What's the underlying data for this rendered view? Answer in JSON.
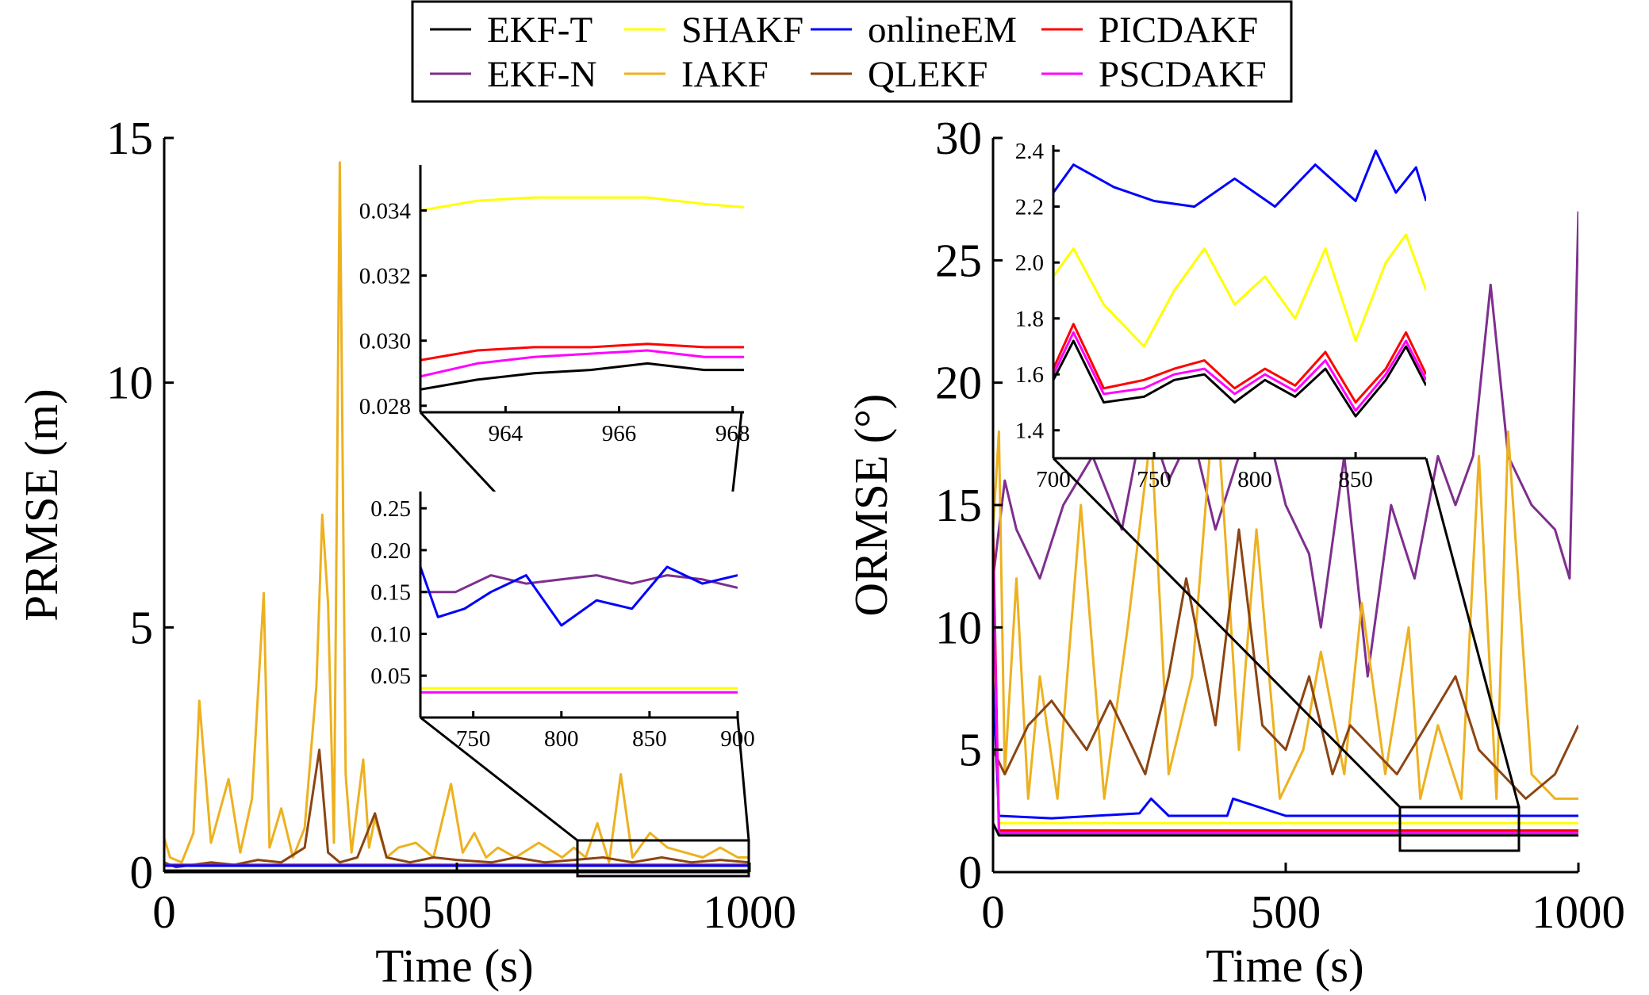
{
  "legend": {
    "items": [
      {
        "label": "EKF-T",
        "color": "#000000"
      },
      {
        "label": "SHAKF",
        "color": "#FFFF00"
      },
      {
        "label": "onlineEM",
        "color": "#0000FF"
      },
      {
        "label": "PICDAKF",
        "color": "#FF0000"
      },
      {
        "label": "EKF-N",
        "color": "#7E2F8E"
      },
      {
        "label": "IAKF",
        "color": "#EDB120"
      },
      {
        "label": "QLEKF",
        "color": "#8B4513"
      },
      {
        "label": "PSCDAKF",
        "color": "#FF00FF"
      }
    ]
  },
  "chart_data": [
    {
      "type": "line",
      "panel": "left-main",
      "xlabel": "Time (s)",
      "ylabel": "PRMSE (m)",
      "xlim": [
        0,
        1000
      ],
      "ylim": [
        0,
        15
      ],
      "xticks": [
        "0",
        "500",
        "1000"
      ],
      "yticks": [
        "0",
        "5",
        "10",
        "15"
      ],
      "series": [
        {
          "name": "IAKF",
          "x": [
            0,
            10,
            30,
            50,
            60,
            80,
            110,
            130,
            150,
            170,
            180,
            200,
            220,
            240,
            260,
            270,
            280,
            290,
            300,
            310,
            320,
            340,
            350,
            360,
            380,
            400,
            430,
            460,
            490,
            510,
            530,
            550,
            570,
            600,
            640,
            680,
            700,
            720,
            740,
            760,
            780,
            800,
            830,
            860,
            890,
            920,
            950,
            980,
            1000
          ],
          "y": [
            0.7,
            0.3,
            0.2,
            0.8,
            3.5,
            0.6,
            1.9,
            0.4,
            1.5,
            5.7,
            0.5,
            1.3,
            0.3,
            0.9,
            3.8,
            7.3,
            5.5,
            0.6,
            14.5,
            2.0,
            0.4,
            2.3,
            0.5,
            1.1,
            0.3,
            0.5,
            0.6,
            0.3,
            1.8,
            0.4,
            0.8,
            0.3,
            0.5,
            0.3,
            0.6,
            0.3,
            0.5,
            0.3,
            1.0,
            0.2,
            2.0,
            0.3,
            0.8,
            0.5,
            0.4,
            0.3,
            0.5,
            0.3,
            0.3
          ]
        },
        {
          "name": "QLEKF",
          "x": [
            0,
            20,
            50,
            80,
            120,
            160,
            200,
            240,
            265,
            280,
            300,
            330,
            360,
            380,
            420,
            460,
            500,
            560,
            600,
            650,
            700,
            750,
            800,
            850,
            900,
            950,
            1000
          ],
          "y": [
            0.2,
            0.1,
            0.15,
            0.2,
            0.15,
            0.25,
            0.2,
            0.5,
            2.5,
            0.4,
            0.2,
            0.3,
            1.2,
            0.3,
            0.2,
            0.3,
            0.25,
            0.2,
            0.3,
            0.2,
            0.25,
            0.3,
            0.2,
            0.3,
            0.2,
            0.25,
            0.2
          ]
        },
        {
          "name": "EKF-N",
          "x": [
            0,
            1000
          ],
          "y": [
            0.15,
            0.15
          ]
        },
        {
          "name": "onlineEM",
          "x": [
            0,
            1000
          ],
          "y": [
            0.13,
            0.13
          ]
        },
        {
          "name": "SHAKF",
          "x": [
            0,
            1000
          ],
          "y": [
            0.035,
            0.035
          ]
        },
        {
          "name": "PICDAKF",
          "x": [
            0,
            1000
          ],
          "y": [
            0.03,
            0.03
          ]
        },
        {
          "name": "PSCDAKF",
          "x": [
            0,
            1000
          ],
          "y": [
            0.029,
            0.029
          ]
        },
        {
          "name": "EKF-T",
          "x": [
            0,
            1000
          ],
          "y": [
            0.028,
            0.028
          ]
        }
      ]
    },
    {
      "type": "line",
      "panel": "left-inset-1",
      "xlim": [
        720,
        900
      ],
      "ylim": [
        0,
        0.27
      ],
      "xticks": [
        "750",
        "800",
        "850",
        "900"
      ],
      "yticks": [
        "0.05",
        "0.10",
        "0.15",
        "0.20",
        "0.25"
      ],
      "series": [
        {
          "name": "EKF-N",
          "x": [
            720,
            740,
            760,
            780,
            800,
            820,
            840,
            860,
            880,
            900
          ],
          "y": [
            0.15,
            0.15,
            0.17,
            0.16,
            0.165,
            0.17,
            0.16,
            0.17,
            0.165,
            0.155
          ]
        },
        {
          "name": "onlineEM",
          "x": [
            720,
            730,
            745,
            760,
            780,
            800,
            820,
            840,
            860,
            880,
            900
          ],
          "y": [
            0.18,
            0.12,
            0.13,
            0.15,
            0.17,
            0.11,
            0.14,
            0.13,
            0.18,
            0.16,
            0.17
          ]
        },
        {
          "name": "SHAKF",
          "x": [
            720,
            900
          ],
          "y": [
            0.035,
            0.035
          ]
        },
        {
          "name": "PSCDAKF",
          "x": [
            720,
            900
          ],
          "y": [
            0.03,
            0.03
          ]
        }
      ]
    },
    {
      "type": "line",
      "panel": "left-inset-2",
      "xlim": [
        962.5,
        968.2
      ],
      "ylim": [
        0.0278,
        0.0354
      ],
      "xticks": [
        "964",
        "966",
        "968"
      ],
      "yticks": [
        "0.028",
        "0.030",
        "0.032",
        "0.034"
      ],
      "series": [
        {
          "name": "SHAKF",
          "x": [
            962.5,
            963.5,
            964.5,
            965.5,
            966.5,
            967.5,
            968.2
          ],
          "y": [
            0.034,
            0.0343,
            0.0344,
            0.0344,
            0.0344,
            0.0342,
            0.0341
          ]
        },
        {
          "name": "PICDAKF",
          "x": [
            962.5,
            963.5,
            964.5,
            965.5,
            966.5,
            967.5,
            968.2
          ],
          "y": [
            0.0294,
            0.0297,
            0.0298,
            0.0298,
            0.0299,
            0.0298,
            0.0298
          ]
        },
        {
          "name": "PSCDAKF",
          "x": [
            962.5,
            963.5,
            964.5,
            965.5,
            966.5,
            967.5,
            968.2
          ],
          "y": [
            0.0289,
            0.0293,
            0.0295,
            0.0296,
            0.0297,
            0.0295,
            0.0295
          ]
        },
        {
          "name": "EKF-T",
          "x": [
            962.5,
            963.5,
            964.5,
            965.5,
            966.5,
            967.5,
            968.2
          ],
          "y": [
            0.0285,
            0.0288,
            0.029,
            0.0291,
            0.0293,
            0.0291,
            0.0291
          ]
        }
      ]
    },
    {
      "type": "line",
      "panel": "right-main",
      "xlabel": "Time (s)",
      "ylabel": "ORMSE (°)",
      "xlim": [
        0,
        1000
      ],
      "ylim": [
        0,
        30
      ],
      "xticks": [
        "0",
        "500",
        "1000"
      ],
      "yticks": [
        "0",
        "5",
        "10",
        "15",
        "20",
        "25",
        "30"
      ],
      "series": [
        {
          "name": "EKF-N",
          "x": [
            0,
            20,
            40,
            80,
            120,
            170,
            220,
            260,
            300,
            340,
            380,
            420,
            460,
            500,
            540,
            560,
            600,
            640,
            680,
            720,
            760,
            790,
            820,
            850,
            880,
            920,
            960,
            985,
            1000
          ],
          "y": [
            12,
            16,
            14,
            12,
            15,
            17,
            14,
            19,
            16,
            18,
            14,
            17,
            19,
            15,
            13,
            10,
            17,
            8,
            15,
            12,
            17,
            15,
            17,
            24,
            17,
            15,
            14,
            12,
            27
          ]
        },
        {
          "name": "IAKF",
          "x": [
            0,
            10,
            20,
            40,
            60,
            80,
            110,
            150,
            190,
            230,
            270,
            300,
            340,
            380,
            420,
            450,
            490,
            530,
            560,
            600,
            630,
            670,
            710,
            730,
            760,
            800,
            830,
            860,
            880,
            920,
            960,
            1000
          ],
          "y": [
            14,
            18,
            4,
            12,
            3,
            8,
            3,
            15,
            3,
            10,
            18,
            4,
            8,
            20,
            5,
            14,
            3,
            5,
            9,
            4,
            11,
            4,
            10,
            3,
            6,
            3,
            17,
            3,
            18,
            4,
            3,
            3
          ]
        },
        {
          "name": "QLEKF",
          "x": [
            0,
            20,
            60,
            100,
            160,
            200,
            260,
            300,
            330,
            380,
            420,
            460,
            500,
            540,
            580,
            610,
            650,
            690,
            740,
            790,
            830,
            870,
            910,
            960,
            1000
          ],
          "y": [
            5,
            4,
            6,
            7,
            5,
            7,
            4,
            8,
            12,
            6,
            14,
            6,
            5,
            8,
            4,
            6,
            5,
            4,
            6,
            8,
            5,
            4,
            3,
            4,
            6
          ]
        },
        {
          "name": "onlineEM",
          "x": [
            0,
            10,
            100,
            250,
            270,
            300,
            400,
            410,
            500,
            700,
            1000
          ],
          "y": [
            8,
            2.3,
            2.2,
            2.4,
            3.0,
            2.3,
            2.3,
            3.0,
            2.3,
            2.3,
            2.3
          ]
        },
        {
          "name": "SHAKF",
          "x": [
            0,
            10,
            1000
          ],
          "y": [
            12,
            2.0,
            2.0
          ]
        },
        {
          "name": "PICDAKF",
          "x": [
            0,
            10,
            1000
          ],
          "y": [
            14,
            1.7,
            1.7
          ]
        },
        {
          "name": "PSCDAKF",
          "x": [
            0,
            10,
            1000
          ],
          "y": [
            13,
            1.6,
            1.6
          ]
        },
        {
          "name": "EKF-T",
          "x": [
            0,
            10,
            1000
          ],
          "y": [
            2,
            1.5,
            1.5
          ]
        }
      ]
    },
    {
      "type": "line",
      "panel": "right-inset",
      "xlim": [
        700,
        885
      ],
      "ylim": [
        1.3,
        2.42
      ],
      "xticks": [
        "700",
        "750",
        "800",
        "850"
      ],
      "yticks": [
        "1.4",
        "1.6",
        "1.8",
        "2.0",
        "2.2",
        "2.4"
      ],
      "series": [
        {
          "name": "onlineEM",
          "x": [
            700,
            710,
            730,
            750,
            770,
            790,
            810,
            830,
            850,
            860,
            870,
            880,
            885
          ],
          "y": [
            2.25,
            2.35,
            2.27,
            2.22,
            2.2,
            2.3,
            2.2,
            2.35,
            2.22,
            2.4,
            2.25,
            2.34,
            2.22
          ]
        },
        {
          "name": "SHAKF",
          "x": [
            700,
            710,
            725,
            745,
            760,
            775,
            790,
            805,
            820,
            835,
            850,
            865,
            875,
            885
          ],
          "y": [
            1.95,
            2.05,
            1.85,
            1.7,
            1.9,
            2.05,
            1.85,
            1.95,
            1.8,
            2.05,
            1.72,
            2.0,
            2.1,
            1.9
          ]
        },
        {
          "name": "PICDAKF",
          "x": [
            700,
            710,
            725,
            745,
            760,
            775,
            790,
            805,
            820,
            835,
            850,
            865,
            875,
            885
          ],
          "y": [
            1.62,
            1.78,
            1.55,
            1.58,
            1.62,
            1.65,
            1.55,
            1.62,
            1.56,
            1.68,
            1.5,
            1.62,
            1.75,
            1.6
          ]
        },
        {
          "name": "PSCDAKF",
          "x": [
            700,
            710,
            725,
            745,
            760,
            775,
            790,
            805,
            820,
            835,
            850,
            865,
            875,
            885
          ],
          "y": [
            1.6,
            1.75,
            1.53,
            1.55,
            1.6,
            1.62,
            1.53,
            1.6,
            1.54,
            1.65,
            1.47,
            1.6,
            1.72,
            1.58
          ]
        },
        {
          "name": "EKF-T",
          "x": [
            700,
            710,
            725,
            745,
            760,
            775,
            790,
            805,
            820,
            835,
            850,
            865,
            875,
            885
          ],
          "y": [
            1.58,
            1.72,
            1.5,
            1.52,
            1.58,
            1.6,
            1.5,
            1.58,
            1.52,
            1.62,
            1.45,
            1.58,
            1.7,
            1.56
          ]
        }
      ]
    }
  ]
}
